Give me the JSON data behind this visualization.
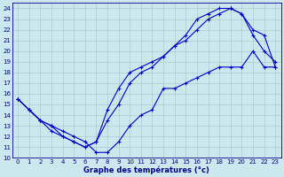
{
  "background_color": "#cce8ee",
  "grid_color": "#aacccc",
  "line_color": "#0000cc",
  "xlabel": "Graphe des températures (°c)",
  "xlim": [
    -0.5,
    23.5
  ],
  "ylim": [
    10,
    24.5
  ],
  "xticks": [
    0,
    1,
    2,
    3,
    4,
    5,
    6,
    7,
    8,
    9,
    10,
    11,
    12,
    13,
    14,
    15,
    16,
    17,
    18,
    19,
    20,
    21,
    22,
    23
  ],
  "yticks": [
    10,
    11,
    12,
    13,
    14,
    15,
    16,
    17,
    18,
    19,
    20,
    21,
    22,
    23,
    24
  ],
  "series1": {
    "x": [
      0,
      1,
      2,
      3,
      4,
      5,
      6,
      7,
      8,
      9,
      10,
      11,
      12,
      13,
      14,
      15,
      16,
      17,
      18,
      19,
      20,
      21,
      22,
      23
    ],
    "y": [
      15.5,
      14.5,
      13.5,
      12.5,
      12.0,
      11.5,
      11.0,
      11.5,
      14.5,
      16.5,
      18.0,
      18.5,
      19.0,
      19.5,
      20.5,
      21.0,
      22.0,
      23.0,
      23.5,
      24.0,
      23.5,
      22.0,
      21.5,
      18.5
    ]
  },
  "series2": {
    "x": [
      0,
      1,
      2,
      3,
      4,
      5,
      6,
      7,
      8,
      9,
      10,
      11,
      12,
      13,
      14,
      15,
      16,
      17,
      18,
      19,
      20,
      21,
      22,
      23
    ],
    "y": [
      15.5,
      14.5,
      13.5,
      13.0,
      12.0,
      11.5,
      11.0,
      11.5,
      13.5,
      15.0,
      17.0,
      18.0,
      18.5,
      19.5,
      20.5,
      21.5,
      23.0,
      23.5,
      24.0,
      24.0,
      23.5,
      21.5,
      20.0,
      19.0
    ]
  },
  "series3": {
    "x": [
      0,
      1,
      2,
      3,
      4,
      5,
      6,
      7,
      8,
      9,
      10,
      11,
      12,
      13,
      14,
      15,
      16,
      17,
      18,
      19,
      20,
      21,
      22,
      23
    ],
    "y": [
      15.5,
      14.5,
      13.5,
      13.0,
      12.5,
      12.0,
      11.5,
      10.5,
      10.5,
      11.5,
      13.0,
      14.0,
      14.5,
      16.5,
      16.5,
      17.0,
      17.5,
      18.0,
      18.5,
      18.5,
      18.5,
      20.0,
      18.5,
      18.5
    ]
  }
}
